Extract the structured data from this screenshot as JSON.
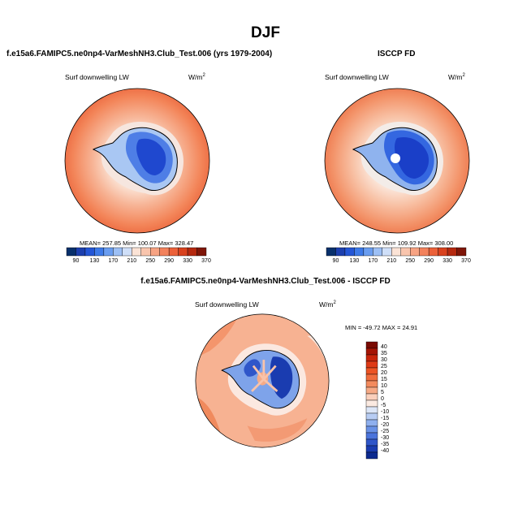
{
  "figure": {
    "season": "DJF"
  },
  "panels": [
    {
      "id": "model",
      "title": "f.e15a6.FAMIPC5.ne0np4-VarMeshNH3.Club_Test.006 (yrs 1979-2004)",
      "variable": "Surf downwelling LW",
      "units": "W/m",
      "units_exp": "2",
      "stats": "MEAN= 257.85  Min= 100.07  Max= 328.47"
    },
    {
      "id": "obs",
      "title": "ISCCP FD",
      "variable": "Surf downwelling LW",
      "units": "W/m",
      "units_exp": "2",
      "stats": "MEAN= 248.55  Min= 109.92  Max= 308.00"
    },
    {
      "id": "diff",
      "title": "f.e15a6.FAMIPC5.ne0np4-VarMeshNH3.Club_Test.006 - ISCCP FD",
      "variable": "Surf downwelling LW",
      "units": "W/m",
      "units_exp": "2",
      "stats": "MIN = -49.72 MAX =  24.91"
    }
  ],
  "colorbars": {
    "absolute": {
      "ticks": [
        "90",
        "130",
        "170",
        "210",
        "250",
        "290",
        "330",
        "370"
      ],
      "colors": [
        "#08306b",
        "#1c3fae",
        "#2456d6",
        "#3d7ae8",
        "#6a9df0",
        "#9dc0f5",
        "#cfdff8",
        "#fbe3d6",
        "#f9c5ad",
        "#f7a383",
        "#f3825c",
        "#ec6139",
        "#d9421e",
        "#b5290f",
        "#7f1608"
      ]
    },
    "difference": {
      "ticks": [
        "40",
        "35",
        "30",
        "25",
        "20",
        "15",
        "10",
        "5",
        "0",
        "-5",
        "-10",
        "-15",
        "-20",
        "-25",
        "-30",
        "-35",
        "-40"
      ],
      "colors": [
        "#7a0a02",
        "#a51505",
        "#c8250b",
        "#de3a16",
        "#ec5424",
        "#f06d3d",
        "#f38b5e",
        "#f6aa86",
        "#fad0bc",
        "#fbeae1",
        "#dce6f7",
        "#b8cdf3",
        "#8fb0ee",
        "#6a92e6",
        "#4b74db",
        "#2f56c9",
        "#1a3cb0",
        "#0c2a8f"
      ]
    }
  }
}
